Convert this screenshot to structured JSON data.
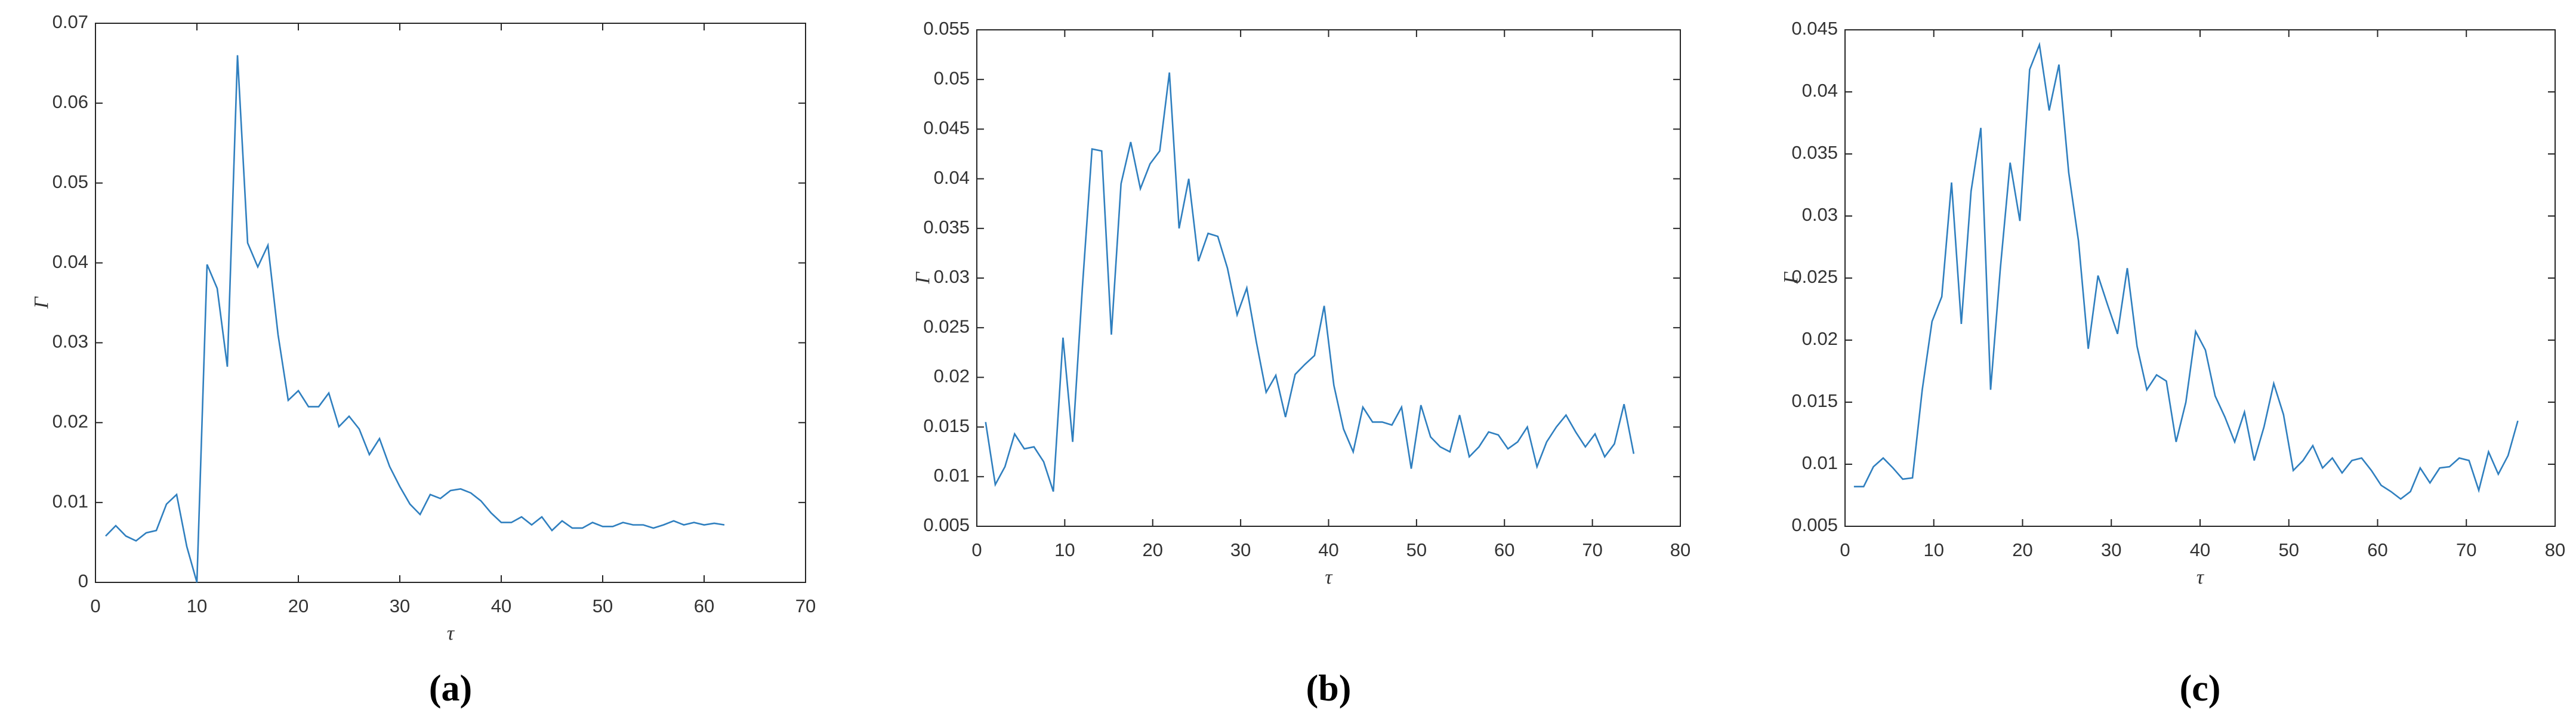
{
  "chart_data": [
    {
      "type": "line",
      "caption": "(a)",
      "xlabel": "τ",
      "ylabel": "Γ",
      "x": [
        1,
        2,
        3,
        4,
        5,
        6,
        7,
        8,
        9,
        10,
        11,
        12,
        13,
        14,
        15,
        16,
        17,
        18,
        19,
        20,
        21,
        22,
        23,
        24,
        25,
        26,
        27,
        28,
        29,
        30,
        31,
        32,
        33,
        34,
        35,
        36,
        37,
        38,
        39,
        40,
        41,
        42,
        43,
        44,
        45,
        46,
        47,
        48,
        49,
        50,
        51,
        52,
        53,
        54,
        55,
        56,
        57,
        58,
        59,
        60,
        61,
        62
      ],
      "series": [
        {
          "color": "#2f7fbf",
          "values": [
            0.0058,
            0.0071,
            0.0058,
            0.0052,
            0.0062,
            0.0065,
            0.0098,
            0.011,
            0.0045,
            0,
            0.0398,
            0.0368,
            0.027,
            0.066,
            0.0425,
            0.0395,
            0.0422,
            0.031,
            0.0228,
            0.024,
            0.022,
            0.022,
            0.0237,
            0.0195,
            0.0208,
            0.0192,
            0.016,
            0.018,
            0.0145,
            0.012,
            0.0098,
            0.0085,
            0.011,
            0.0105,
            0.0115,
            0.0117,
            0.0112,
            0.0102,
            0.0087,
            0.0075,
            0.0075,
            0.0082,
            0.0072,
            0.0082,
            0.0065,
            0.0077,
            0.0068,
            0.0068,
            0.0075,
            0.007,
            0.007,
            0.0075,
            0.0072,
            0.0072,
            0.0068,
            0.0072,
            0.0077,
            0.0072,
            0.0075,
            0.0072,
            0.0074,
            0.0072
          ]
        }
      ],
      "xlim": [
        0,
        70
      ],
      "xticks": [
        0,
        10,
        20,
        30,
        40,
        50,
        60,
        70
      ],
      "ylim": [
        0,
        0.07
      ],
      "yticks": [
        0,
        0.01,
        0.02,
        0.03,
        0.04,
        0.05,
        0.06,
        0.07
      ]
    },
    {
      "type": "line",
      "caption": "(b)",
      "xlabel": "τ",
      "ylabel": "Γ",
      "x": [
        1,
        2.1,
        3.2,
        4.3,
        5.4,
        6.5,
        7.6,
        8.7,
        9.8,
        10.9,
        12,
        13.1,
        14.2,
        15.3,
        16.4,
        17.5,
        18.6,
        19.7,
        20.8,
        21.9,
        23,
        24.1,
        25.2,
        26.3,
        27.4,
        28.5,
        29.6,
        30.7,
        31.8,
        32.9,
        34,
        35.1,
        36.2,
        37.3,
        38.4,
        39.5,
        40.6,
        41.7,
        42.8,
        43.9,
        45,
        46.1,
        47.2,
        48.3,
        49.4,
        50.5,
        51.6,
        52.7,
        53.8,
        54.9,
        56,
        57.1,
        58.2,
        59.3,
        60.4,
        61.5,
        62.6,
        63.7,
        64.8,
        65.9,
        67,
        68.1,
        69.2,
        70.3,
        71.4,
        72.5,
        73.6,
        74.7
      ],
      "series": [
        {
          "color": "#2f7fbf",
          "values": [
            0.0155,
            0.0092,
            0.011,
            0.0143,
            0.0128,
            0.013,
            0.0115,
            0.0085,
            0.024,
            0.0135,
            0.029,
            0.043,
            0.0428,
            0.0243,
            0.0395,
            0.0437,
            0.039,
            0.0415,
            0.0428,
            0.0507,
            0.035,
            0.04,
            0.0317,
            0.0345,
            0.0342,
            0.031,
            0.0263,
            0.029,
            0.0235,
            0.0185,
            0.0202,
            0.016,
            0.0203,
            0.0213,
            0.0222,
            0.0272,
            0.0192,
            0.0148,
            0.0125,
            0.017,
            0.0155,
            0.0155,
            0.0152,
            0.017,
            0.0108,
            0.0172,
            0.014,
            0.013,
            0.0125,
            0.0162,
            0.012,
            0.013,
            0.0145,
            0.0142,
            0.0128,
            0.0135,
            0.015,
            0.011,
            0.0135,
            0.015,
            0.0162,
            0.0145,
            0.013,
            0.0143,
            0.012,
            0.0133,
            0.0173,
            0.0123
          ]
        }
      ],
      "xlim": [
        0,
        80
      ],
      "xticks": [
        0,
        10,
        20,
        30,
        40,
        50,
        60,
        70,
        80
      ],
      "ylim": [
        0.005,
        0.055
      ],
      "yticks": [
        0.005,
        0.01,
        0.015,
        0.02,
        0.025,
        0.03,
        0.035,
        0.04,
        0.045,
        0.05,
        0.055
      ]
    },
    {
      "type": "line",
      "caption": "(c)",
      "xlabel": "τ",
      "ylabel": "Γ",
      "x": [
        1,
        2.1,
        3.2,
        4.3,
        5.4,
        6.5,
        7.6,
        8.7,
        9.8,
        10.9,
        12,
        13.1,
        14.2,
        15.3,
        16.4,
        17.5,
        18.6,
        19.7,
        20.8,
        21.9,
        23,
        24.1,
        25.2,
        26.3,
        27.4,
        28.5,
        29.6,
        30.7,
        31.8,
        32.9,
        34,
        35.1,
        36.2,
        37.3,
        38.4,
        39.5,
        40.6,
        41.7,
        42.8,
        43.9,
        45,
        46.1,
        47.2,
        48.3,
        49.4,
        50.5,
        51.6,
        52.7,
        53.8,
        54.9,
        56,
        57.1,
        58.2,
        59.3,
        60.4,
        61.5,
        62.6,
        63.7,
        64.8,
        65.9,
        67,
        68.1,
        69.2,
        70.3,
        71.4,
        72.5,
        73.6,
        74.7,
        75.8
      ],
      "series": [
        {
          "color": "#2f7fbf",
          "values": [
            0.0082,
            0.0082,
            0.0098,
            0.0105,
            0.0097,
            0.0088,
            0.0089,
            0.016,
            0.0215,
            0.0235,
            0.0327,
            0.0213,
            0.032,
            0.0371,
            0.016,
            0.0258,
            0.0343,
            0.0296,
            0.0418,
            0.0438,
            0.0385,
            0.0422,
            0.0335,
            0.028,
            0.0193,
            0.0252,
            0.0228,
            0.0205,
            0.0258,
            0.0195,
            0.016,
            0.0172,
            0.0167,
            0.0118,
            0.015,
            0.0207,
            0.0192,
            0.0155,
            0.0138,
            0.0118,
            0.0142,
            0.0103,
            0.013,
            0.0165,
            0.014,
            0.0095,
            0.0103,
            0.0115,
            0.0097,
            0.0105,
            0.0093,
            0.0103,
            0.0105,
            0.0095,
            0.0083,
            0.0078,
            0.0072,
            0.0078,
            0.0097,
            0.0085,
            0.0097,
            0.0098,
            0.0105,
            0.0103,
            0.0079,
            0.011,
            0.0092,
            0.0107,
            0.0135
          ]
        }
      ],
      "xlim": [
        0,
        80
      ],
      "xticks": [
        0,
        10,
        20,
        30,
        40,
        50,
        60,
        70,
        80
      ],
      "ylim": [
        0.005,
        0.045
      ],
      "yticks": [
        0.005,
        0.01,
        0.015,
        0.02,
        0.025,
        0.03,
        0.035,
        0.04,
        0.045
      ]
    }
  ]
}
